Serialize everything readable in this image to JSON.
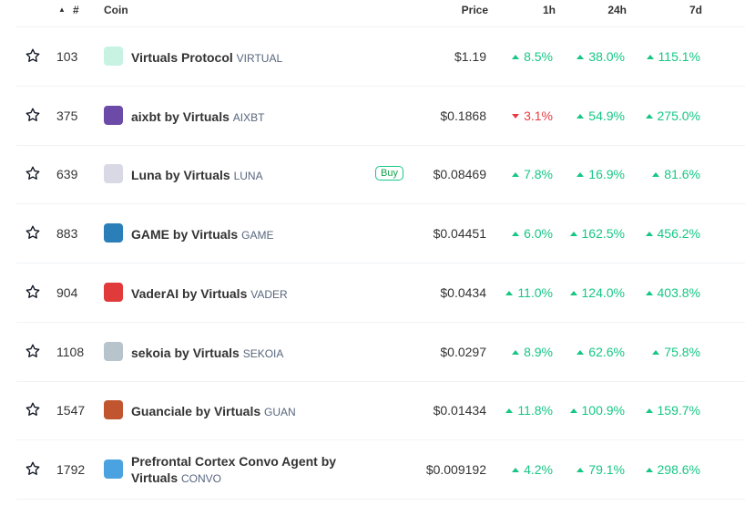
{
  "header": {
    "rank": "#",
    "coin": "Coin",
    "price": "Price",
    "h1": "1h",
    "h24": "24h",
    "d7": "7d"
  },
  "colors": {
    "up": "#16c784",
    "down": "#ea3943"
  },
  "rows": [
    {
      "rank": "103",
      "name": "Virtuals Protocol",
      "symbol": "VIRTUAL",
      "price": "$1.19",
      "h1": "8.5%",
      "h1_dir": "up",
      "h24": "38.0%",
      "d7": "115.1%",
      "icon_color": "#c8f3e3"
    },
    {
      "rank": "375",
      "name": "aixbt by Virtuals",
      "symbol": "AIXBT",
      "price": "$0.1868",
      "h1": "3.1%",
      "h1_dir": "down",
      "h24": "54.9%",
      "d7": "275.0%",
      "icon_color": "#6b4aa8"
    },
    {
      "rank": "639",
      "name": "Luna by Virtuals",
      "symbol": "LUNA",
      "price": "$0.08469",
      "h1": "7.8%",
      "h1_dir": "up",
      "h24": "16.9%",
      "d7": "81.6%",
      "icon_color": "#d9d9e6",
      "buy": "Buy"
    },
    {
      "rank": "883",
      "name": "GAME by Virtuals",
      "symbol": "GAME",
      "price": "$0.04451",
      "h1": "6.0%",
      "h1_dir": "up",
      "h24": "162.5%",
      "d7": "456.2%",
      "icon_color": "#2a7fb8"
    },
    {
      "rank": "904",
      "name": "VaderAI by Virtuals",
      "symbol": "VADER",
      "price": "$0.0434",
      "h1": "11.0%",
      "h1_dir": "up",
      "h24": "124.0%",
      "d7": "403.8%",
      "icon_color": "#e03a3a"
    },
    {
      "rank": "1108",
      "name": "sekoia by Virtuals",
      "symbol": "SEKOIA",
      "price": "$0.0297",
      "h1": "8.9%",
      "h1_dir": "up",
      "h24": "62.6%",
      "d7": "75.8%",
      "icon_color": "#b8c4cc"
    },
    {
      "rank": "1547",
      "name": "Guanciale by Virtuals",
      "symbol": "GUAN",
      "price": "$0.01434",
      "h1": "11.8%",
      "h1_dir": "up",
      "h24": "100.9%",
      "d7": "159.7%",
      "icon_color": "#c0552f"
    },
    {
      "rank": "1792",
      "name": "Prefrontal Cortex Convo Agent by Virtuals",
      "symbol": "CONVO",
      "price": "$0.009192",
      "h1": "4.2%",
      "h1_dir": "up",
      "h24": "79.1%",
      "d7": "298.6%",
      "icon_color": "#4aa3e0"
    }
  ]
}
